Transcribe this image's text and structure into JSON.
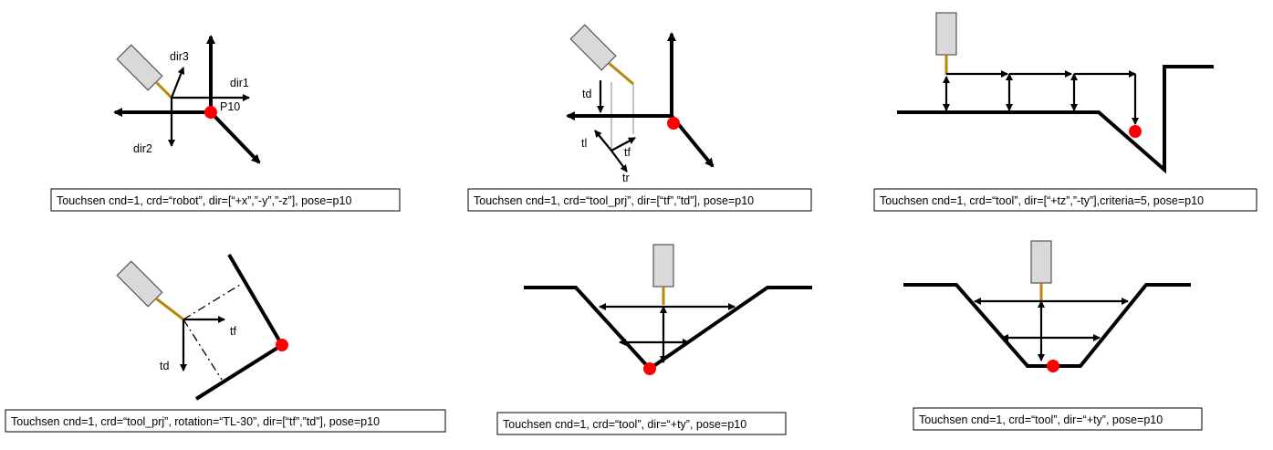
{
  "panels": [
    {
      "caption": "Touchsen cnd=1, crd=“robot”, dir=[“+x”,”-y”,”-z”], pose=p10",
      "labels": {
        "dir3": "dir3",
        "dir1": "dir1",
        "p10": "P10",
        "dir2": "dir2"
      }
    },
    {
      "caption": "Touchsen cnd=1, crd=“tool_prj”, dir=[“tf”,”td”], pose=p10",
      "labels": {
        "td": "td",
        "tl": "tl",
        "tf": "tf",
        "tr": "tr"
      }
    },
    {
      "caption": "Touchsen cnd=1, crd=“tool”, dir=[“+tz”,”-ty”],criteria=5, pose=p10"
    },
    {
      "caption": "Touchsen cnd=1, crd=“tool_prj”, rotation=“TL-30”, dir=[“tf”,”td”], pose=p10",
      "labels": {
        "tf": "tf",
        "td": "td"
      }
    },
    {
      "caption": "Touchsen cnd=1, crd=“tool”, dir=“+ty”, pose=p10"
    },
    {
      "caption": "Touchsen cnd=1, crd=“tool”, dir=“+ty”, pose=p10"
    }
  ],
  "colors": {
    "touch_point": "#ff0000",
    "wire": "#b8860b",
    "torch": "#d9d9d9",
    "lines": "#000000"
  }
}
